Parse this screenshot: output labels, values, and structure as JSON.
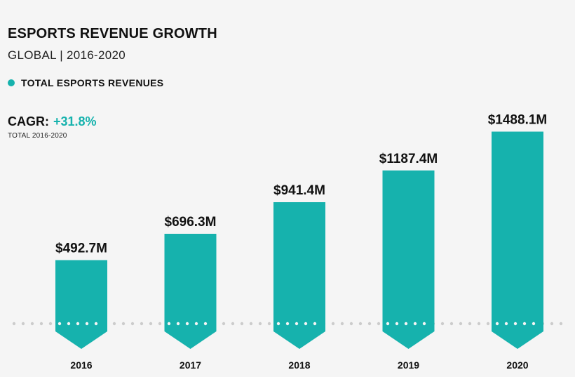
{
  "header": {
    "title": "ESPORTS REVENUE GROWTH",
    "subtitle": "GLOBAL | 2016-2020"
  },
  "legend": {
    "label": "TOTAL ESPORTS REVENUES"
  },
  "cagr": {
    "label": "CAGR:",
    "value": "+31.8%",
    "note": "TOTAL 2016-2020"
  },
  "colors": {
    "bar": "#16b2ad",
    "accent": "#16b2ad",
    "baseline_dots": "#cccccc",
    "bar_dots": "#f5f5f5"
  },
  "chart_data": {
    "type": "bar",
    "title": "ESPORTS REVENUE GROWTH",
    "subtitle": "GLOBAL | 2016-2020",
    "categories": [
      "2016",
      "2017",
      "2018",
      "2019",
      "2020"
    ],
    "series": [
      {
        "name": "TOTAL ESPORTS REVENUES",
        "values": [
          492.7,
          696.3,
          941.4,
          1187.4,
          1488.1
        ],
        "labels": [
          "$492.7M",
          "$696.3M",
          "$941.4M",
          "$1187.4M",
          "$1488.1M"
        ]
      }
    ],
    "xlabel": "",
    "ylabel": "",
    "grid": false,
    "legend_position": "top-left"
  }
}
